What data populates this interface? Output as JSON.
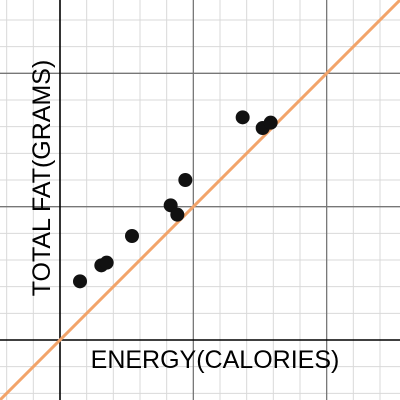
{
  "chart_data": {
    "type": "scatter",
    "xlabel": "ENERGY(CALORIES)",
    "ylabel": "TOTAL FAT(GRAMS)",
    "xlim": [
      -2.25,
      12.75
    ],
    "ylim": [
      -2.25,
      12.75
    ],
    "grid": true,
    "points": {
      "x": [
        0.75,
        1.55,
        1.75,
        2.7,
        4.15,
        4.4,
        4.7,
        6.85,
        7.6,
        7.9
      ],
      "y": [
        2.2,
        2.8,
        2.9,
        3.9,
        5.05,
        4.7,
        6.0,
        8.35,
        7.95,
        8.15
      ]
    },
    "trendline": {
      "slope": 1.0,
      "intercept": 0.0
    },
    "colors": {
      "points": "#111111",
      "trendline": "#f2a46a",
      "minor_grid": "#d9d9d9",
      "major_grid": "#777777",
      "axes": "#000000"
    }
  }
}
